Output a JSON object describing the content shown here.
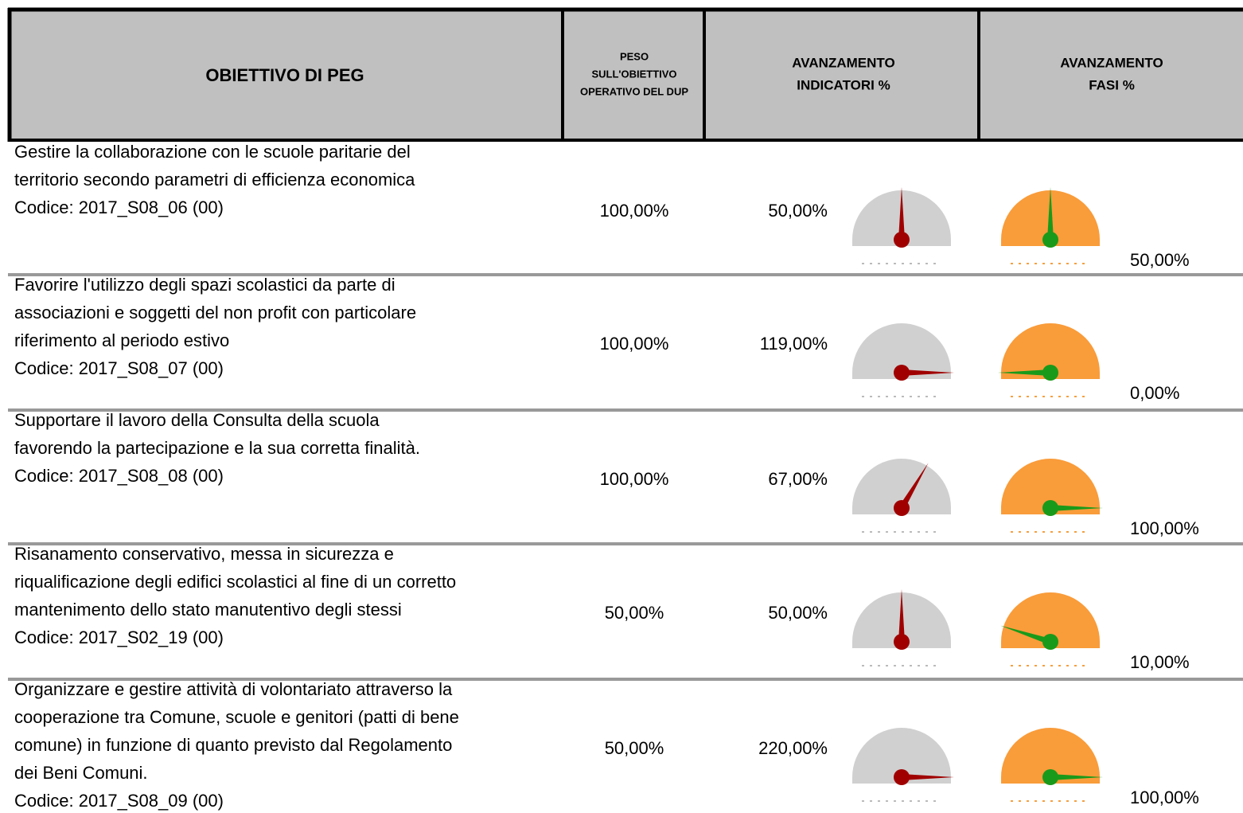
{
  "header": {
    "obiettivo": "OBIETTIVO DI PEG",
    "peso": [
      "PESO",
      "SULL'OBIETTIVO",
      "OPERATIVO DEL DUP"
    ],
    "indicatori": [
      "AVANZAMENTO",
      "INDICATORI %"
    ],
    "fasi": [
      "AVANZAMENTO",
      "FASI %"
    ]
  },
  "gauge_range": [
    0,
    100
  ],
  "rows": [
    {
      "obiettivo": [
        "Gestire la collaborazione con le scuole paritarie del",
        "territorio secondo parametri di efficienza economica",
        "Codice: 2017_S08_06 (00)"
      ],
      "peso": "100,00%",
      "indicatori": {
        "value": 50,
        "label": "50,00%"
      },
      "fasi": {
        "value": 50,
        "label": "50,00%"
      }
    },
    {
      "obiettivo": [
        "Favorire l'utilizzo degli spazi scolastici da parte di",
        "associazioni e soggetti del non profit con particolare",
        "riferimento al periodo estivo",
        "Codice: 2017_S08_07 (00)"
      ],
      "peso": "100,00%",
      "indicatori": {
        "value": 119,
        "label": "119,00%"
      },
      "fasi": {
        "value": 0,
        "label": "0,00%"
      }
    },
    {
      "obiettivo": [
        "Supportare il lavoro della Consulta della scuola",
        "favorendo la partecipazione e la sua corretta finalità.",
        "Codice: 2017_S08_08 (00)"
      ],
      "peso": "100,00%",
      "indicatori": {
        "value": 67,
        "label": "67,00%"
      },
      "fasi": {
        "value": 100,
        "label": "100,00%"
      }
    },
    {
      "obiettivo": [
        "Risanamento conservativo, messa in sicurezza e",
        "riqualificazione degli edifici scolastici al fine di un corretto",
        "mantenimento dello stato manutentivo degli stessi",
        "Codice: 2017_S02_19 (00)"
      ],
      "peso": "50,00%",
      "indicatori": {
        "value": 50,
        "label": "50,00%"
      },
      "fasi": {
        "value": 10,
        "label": "10,00%"
      }
    },
    {
      "obiettivo": [
        "Organizzare e gestire attività di volontariato attraverso la",
        "cooperazione tra Comune, scuole e genitori (patti di bene",
        "comune) in funzione di quanto previsto dal Regolamento",
        "dei Beni Comuni.",
        "Codice: 2017_S08_09 (00)"
      ],
      "peso": "50,00%",
      "indicatori": {
        "value": 220,
        "label": "220,00%"
      },
      "fasi": {
        "value": 100,
        "label": "100,00%"
      }
    }
  ]
}
